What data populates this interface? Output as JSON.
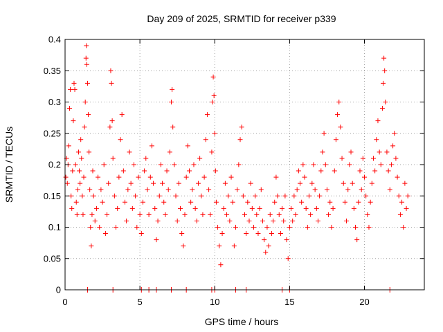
{
  "chart_data": {
    "type": "scatter",
    "title": "Day 209 of 2025, SRMTID for receiver p339",
    "xlabel": "GPS time / hours",
    "ylabel": "SRMTID / TECUs",
    "xlim": [
      0,
      24
    ],
    "ylim": [
      0,
      0.4
    ],
    "x_ticks": [
      0,
      5,
      10,
      15,
      20
    ],
    "x_tick_labels": [
      "0",
      "5",
      "10",
      "15",
      "20"
    ],
    "y_ticks": [
      0,
      0.05,
      0.1,
      0.15,
      0.2,
      0.25,
      0.3,
      0.35,
      0.4
    ],
    "y_tick_labels": [
      "0",
      "0.05",
      "0.1",
      "0.15",
      "0.2",
      "0.25",
      "0.3",
      "0.35",
      "0.4"
    ],
    "grid": true,
    "marker": "+",
    "marker_color": "#ff0000",
    "series": [
      {
        "name": "SRMTID",
        "color": "#ff0000",
        "points": [
          [
            0.05,
            0.18
          ],
          [
            0.1,
            0.21
          ],
          [
            0.15,
            0.17
          ],
          [
            0.2,
            0.2
          ],
          [
            0.25,
            0.23
          ],
          [
            0.3,
            0.29
          ],
          [
            0.35,
            0.32
          ],
          [
            0.4,
            0.15
          ],
          [
            0.45,
            0.13
          ],
          [
            0.5,
            0.19
          ],
          [
            0.55,
            0.27
          ],
          [
            0.6,
            0.33
          ],
          [
            0.65,
            0.32
          ],
          [
            0.7,
            0.2
          ],
          [
            0.75,
            0.14
          ],
          [
            0.8,
            0.12
          ],
          [
            0.85,
            0.16
          ],
          [
            0.9,
            0.22
          ],
          [
            0.95,
            0.19
          ],
          [
            1.0,
            0.17
          ],
          [
            1.05,
            0.24
          ],
          [
            1.1,
            0.21
          ],
          [
            1.15,
            0.15
          ],
          [
            1.2,
            0.12
          ],
          [
            1.25,
            0.18
          ],
          [
            1.3,
            0.26
          ],
          [
            1.35,
            0.3
          ],
          [
            1.4,
            0.37
          ],
          [
            1.42,
            0.39
          ],
          [
            1.45,
            0.36
          ],
          [
            1.5,
            0.33
          ],
          [
            1.55,
            0.28
          ],
          [
            1.6,
            0.22
          ],
          [
            1.65,
            0.16
          ],
          [
            1.7,
            0.1
          ],
          [
            1.75,
            0.07
          ],
          [
            1.8,
            0.12
          ],
          [
            1.85,
            0.19
          ],
          [
            1.9,
            0.15
          ],
          [
            2.0,
            0.11
          ],
          [
            2.1,
            0.13
          ],
          [
            2.2,
            0.18
          ],
          [
            2.3,
            0.1
          ],
          [
            2.4,
            0.16
          ],
          [
            2.5,
            0.14
          ],
          [
            2.6,
            0.2
          ],
          [
            2.7,
            0.09
          ],
          [
            2.8,
            0.12
          ],
          [
            2.9,
            0.17
          ],
          [
            3.0,
            0.26
          ],
          [
            3.05,
            0.35
          ],
          [
            3.1,
            0.33
          ],
          [
            3.15,
            0.27
          ],
          [
            3.2,
            0.21
          ],
          [
            3.3,
            0.15
          ],
          [
            3.4,
            0.1
          ],
          [
            3.5,
            0.13
          ],
          [
            3.6,
            0.18
          ],
          [
            3.7,
            0.24
          ],
          [
            3.8,
            0.28
          ],
          [
            3.9,
            0.19
          ],
          [
            4.0,
            0.14
          ],
          [
            4.1,
            0.11
          ],
          [
            4.2,
            0.16
          ],
          [
            4.3,
            0.22
          ],
          [
            4.4,
            0.17
          ],
          [
            4.5,
            0.13
          ],
          [
            4.6,
            0.2
          ],
          [
            4.7,
            0.15
          ],
          [
            4.8,
            0.1
          ],
          [
            4.9,
            0.18
          ],
          [
            5.0,
            0.12
          ],
          [
            5.1,
            0.09
          ],
          [
            5.2,
            0.14
          ],
          [
            5.3,
            0.19
          ],
          [
            5.4,
            0.21
          ],
          [
            5.5,
            0.16
          ],
          [
            5.6,
            0.12
          ],
          [
            5.7,
            0.18
          ],
          [
            5.8,
            0.23
          ],
          [
            5.9,
            0.17
          ],
          [
            6.0,
            0.13
          ],
          [
            6.1,
            0.08
          ],
          [
            6.2,
            0.11
          ],
          [
            6.3,
            0.15
          ],
          [
            6.4,
            0.2
          ],
          [
            6.5,
            0.17
          ],
          [
            6.6,
            0.14
          ],
          [
            6.7,
            0.12
          ],
          [
            6.8,
            0.19
          ],
          [
            6.9,
            0.16
          ],
          [
            7.0,
            0.22
          ],
          [
            7.1,
            0.3
          ],
          [
            7.15,
            0.32
          ],
          [
            7.2,
            0.26
          ],
          [
            7.3,
            0.2
          ],
          [
            7.4,
            0.15
          ],
          [
            7.5,
            0.11
          ],
          [
            7.6,
            0.17
          ],
          [
            7.7,
            0.13
          ],
          [
            7.8,
            0.09
          ],
          [
            7.9,
            0.07
          ],
          [
            8.0,
            0.12
          ],
          [
            8.1,
            0.18
          ],
          [
            8.2,
            0.23
          ],
          [
            8.3,
            0.19
          ],
          [
            8.4,
            0.14
          ],
          [
            8.5,
            0.16
          ],
          [
            8.6,
            0.2
          ],
          [
            8.7,
            0.13
          ],
          [
            8.8,
            0.11
          ],
          [
            8.9,
            0.17
          ],
          [
            9.0,
            0.21
          ],
          [
            9.1,
            0.15
          ],
          [
            9.2,
            0.12
          ],
          [
            9.3,
            0.18
          ],
          [
            9.4,
            0.24
          ],
          [
            9.5,
            0.28
          ],
          [
            9.6,
            0.16
          ],
          [
            9.7,
            0.12
          ],
          [
            9.8,
            0.22
          ],
          [
            9.85,
            0.3
          ],
          [
            9.9,
            0.34
          ],
          [
            9.95,
            0.31
          ],
          [
            10.0,
            0.25
          ],
          [
            10.05,
            0.19
          ],
          [
            10.1,
            0.14
          ],
          [
            10.2,
            0.1
          ],
          [
            10.3,
            0.07
          ],
          [
            10.4,
            0.04
          ],
          [
            10.5,
            0.09
          ],
          [
            10.6,
            0.13
          ],
          [
            10.7,
            0.17
          ],
          [
            10.8,
            0.12
          ],
          [
            10.9,
            0.15
          ],
          [
            11.0,
            0.11
          ],
          [
            11.1,
            0.18
          ],
          [
            11.2,
            0.14
          ],
          [
            11.3,
            0.07
          ],
          [
            11.4,
            0.1
          ],
          [
            11.5,
            0.16
          ],
          [
            11.6,
            0.2
          ],
          [
            11.7,
            0.24
          ],
          [
            11.8,
            0.26
          ],
          [
            11.9,
            0.15
          ],
          [
            12.0,
            0.12
          ],
          [
            12.1,
            0.09
          ],
          [
            12.2,
            0.14
          ],
          [
            12.3,
            0.11
          ],
          [
            12.4,
            0.17
          ],
          [
            12.5,
            0.13
          ],
          [
            12.6,
            0.1
          ],
          [
            12.7,
            0.15
          ],
          [
            12.8,
            0.12
          ],
          [
            12.9,
            0.09
          ],
          [
            13.0,
            0.13
          ],
          [
            13.1,
            0.16
          ],
          [
            13.2,
            0.11
          ],
          [
            13.3,
            0.08
          ],
          [
            13.4,
            0.06
          ],
          [
            13.5,
            0.1
          ],
          [
            13.6,
            0.07
          ],
          [
            13.7,
            0.12
          ],
          [
            13.8,
            0.09
          ],
          [
            13.9,
            0.11
          ],
          [
            14.0,
            0.14
          ],
          [
            14.1,
            0.18
          ],
          [
            14.2,
            0.15
          ],
          [
            14.3,
            0.12
          ],
          [
            14.4,
            0.09
          ],
          [
            14.5,
            0.13
          ],
          [
            14.6,
            0.11
          ],
          [
            14.7,
            0.15
          ],
          [
            14.8,
            0.08
          ],
          [
            14.9,
            0.05
          ],
          [
            15.0,
            0.1
          ],
          [
            15.1,
            0.13
          ],
          [
            15.2,
            0.11
          ],
          [
            15.3,
            0.15
          ],
          [
            15.4,
            0.12
          ],
          [
            15.5,
            0.16
          ],
          [
            15.6,
            0.19
          ],
          [
            15.7,
            0.17
          ],
          [
            15.8,
            0.14
          ],
          [
            15.9,
            0.2
          ],
          [
            16.0,
            0.18
          ],
          [
            16.1,
            0.13
          ],
          [
            16.2,
            0.1
          ],
          [
            16.3,
            0.15
          ],
          [
            16.4,
            0.12
          ],
          [
            16.5,
            0.17
          ],
          [
            16.6,
            0.2
          ],
          [
            16.7,
            0.16
          ],
          [
            16.8,
            0.13
          ],
          [
            16.9,
            0.11
          ],
          [
            17.0,
            0.15
          ],
          [
            17.1,
            0.19
          ],
          [
            17.2,
            0.22
          ],
          [
            17.3,
            0.25
          ],
          [
            17.4,
            0.2
          ],
          [
            17.5,
            0.16
          ],
          [
            17.6,
            0.12
          ],
          [
            17.7,
            0.14
          ],
          [
            17.8,
            0.1
          ],
          [
            17.9,
            0.13
          ],
          [
            18.0,
            0.19
          ],
          [
            18.1,
            0.24
          ],
          [
            18.2,
            0.28
          ],
          [
            18.3,
            0.3
          ],
          [
            18.4,
            0.26
          ],
          [
            18.5,
            0.21
          ],
          [
            18.6,
            0.17
          ],
          [
            18.7,
            0.14
          ],
          [
            18.8,
            0.11
          ],
          [
            18.9,
            0.16
          ],
          [
            19.0,
            0.2
          ],
          [
            19.1,
            0.22
          ],
          [
            19.2,
            0.17
          ],
          [
            19.3,
            0.13
          ],
          [
            19.4,
            0.1
          ],
          [
            19.5,
            0.08
          ],
          [
            19.6,
            0.14
          ],
          [
            19.7,
            0.19
          ],
          [
            19.8,
            0.16
          ],
          [
            19.9,
            0.21
          ],
          [
            20.0,
            0.18
          ],
          [
            20.1,
            0.15
          ],
          [
            20.2,
            0.12
          ],
          [
            20.3,
            0.1
          ],
          [
            20.4,
            0.14
          ],
          [
            20.5,
            0.17
          ],
          [
            20.6,
            0.21
          ],
          [
            20.7,
            0.19
          ],
          [
            20.8,
            0.24
          ],
          [
            20.9,
            0.27
          ],
          [
            21.0,
            0.22
          ],
          [
            21.1,
            0.2
          ],
          [
            21.2,
            0.29
          ],
          [
            21.25,
            0.33
          ],
          [
            21.3,
            0.37
          ],
          [
            21.35,
            0.35
          ],
          [
            21.4,
            0.3
          ],
          [
            21.5,
            0.22
          ],
          [
            21.6,
            0.19
          ],
          [
            21.7,
            0.16
          ],
          [
            21.8,
            0.2
          ],
          [
            21.9,
            0.23
          ],
          [
            22.0,
            0.25
          ],
          [
            22.1,
            0.21
          ],
          [
            22.2,
            0.18
          ],
          [
            22.3,
            0.15
          ],
          [
            22.4,
            0.12
          ],
          [
            22.5,
            0.14
          ],
          [
            22.6,
            0.1
          ],
          [
            22.7,
            0.17
          ],
          [
            22.8,
            0.13
          ],
          [
            22.9,
            0.15
          ]
        ]
      }
    ],
    "bottom_markers": [
      1.5,
      3.2,
      5.1,
      5.6,
      6.1,
      7.1,
      8.1,
      9.8,
      10.0,
      11.4,
      12.1,
      14.5,
      15.0,
      21.7
    ]
  }
}
